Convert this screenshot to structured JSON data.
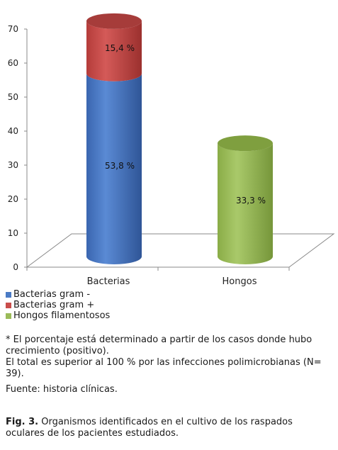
{
  "chart_data": {
    "type": "bar",
    "style": "3d-cylinder-stacked",
    "categories": [
      "Bacterias",
      "Hongos"
    ],
    "series": [
      {
        "name": "Bacterias gram -",
        "values": [
          53.8,
          0
        ],
        "labels": [
          "53,8 %",
          ""
        ],
        "color": "#4b7bc5"
      },
      {
        "name": "Bacterias gram +",
        "values": [
          15.4,
          0
        ],
        "labels": [
          "15,4 %",
          ""
        ],
        "color": "#c94d4b"
      },
      {
        "name": "Hongos filamentosos",
        "values": [
          0,
          33.3
        ],
        "labels": [
          "",
          "33,3 %"
        ],
        "color": "#9bbb59"
      }
    ],
    "y_ticks": [
      "0",
      "10",
      "20",
      "30",
      "40",
      "50",
      "60",
      "70"
    ],
    "ylim": [
      0,
      70
    ],
    "grid": false,
    "legend_position": "bottom-left"
  },
  "notes": {
    "line1": "* El porcentaje está determinado a partir de los casos donde hubo crecimiento (positivo).",
    "line2": "El total es superior al 100 % por las infecciones polimicrobianas (N= 39)."
  },
  "source": "Fuente: historia clínicas.",
  "caption": {
    "label": "Fig. 3.",
    "text": " Organismos identificados en el cultivo de los raspados oculares de los pacientes estudiados."
  }
}
